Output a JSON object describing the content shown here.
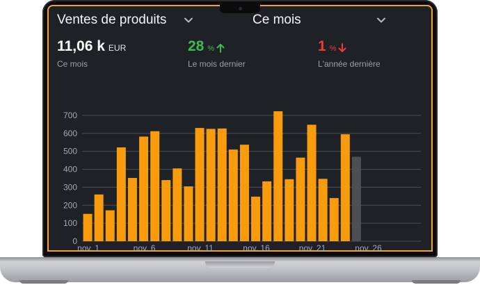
{
  "dashboard": {
    "product_selector": {
      "label": "Ventes de produits"
    },
    "period_selector": {
      "label": "Ce mois"
    }
  },
  "kpis": [
    {
      "value": "11,06 k",
      "unit": "EUR",
      "label": "Ce mois"
    },
    {
      "value": "28",
      "unit": "%",
      "label": "Le mois dernier",
      "trend": "up",
      "color": "#3fba4e"
    },
    {
      "value": "1",
      "unit": "%",
      "label": "L'année dernière",
      "trend": "down",
      "color": "#ef3b3b"
    }
  ],
  "colors": {
    "accent": "#f89b0c",
    "projection": "#4d4f53",
    "background": "#1e2227",
    "grid": "#4a4f57"
  },
  "chart_data": {
    "type": "bar",
    "title": "",
    "xlabel": "",
    "ylabel": "",
    "ylim": [
      0,
      700
    ],
    "yticks": [
      0,
      100,
      200,
      300,
      400,
      500,
      600,
      700
    ],
    "grid": true,
    "x_tick_labels": [
      "nov. 1",
      "nov. 6",
      "nov. 11",
      "nov. 16",
      "nov. 21",
      "nov. 26"
    ],
    "x_tick_days": [
      1,
      6,
      11,
      16,
      21,
      26
    ],
    "days": [
      1,
      2,
      3,
      4,
      5,
      6,
      7,
      8,
      9,
      10,
      11,
      12,
      13,
      14,
      15,
      16,
      17,
      18,
      19,
      20,
      21,
      22,
      23,
      24,
      25
    ],
    "values": [
      152,
      260,
      172,
      522,
      352,
      582,
      612,
      340,
      405,
      305,
      630,
      625,
      627,
      510,
      537,
      248,
      333,
      723,
      345,
      465,
      648,
      347,
      240,
      595,
      470
    ],
    "projected": [
      false,
      false,
      false,
      false,
      false,
      false,
      false,
      false,
      false,
      false,
      false,
      false,
      false,
      false,
      false,
      false,
      false,
      false,
      false,
      false,
      false,
      false,
      false,
      false,
      true
    ]
  }
}
